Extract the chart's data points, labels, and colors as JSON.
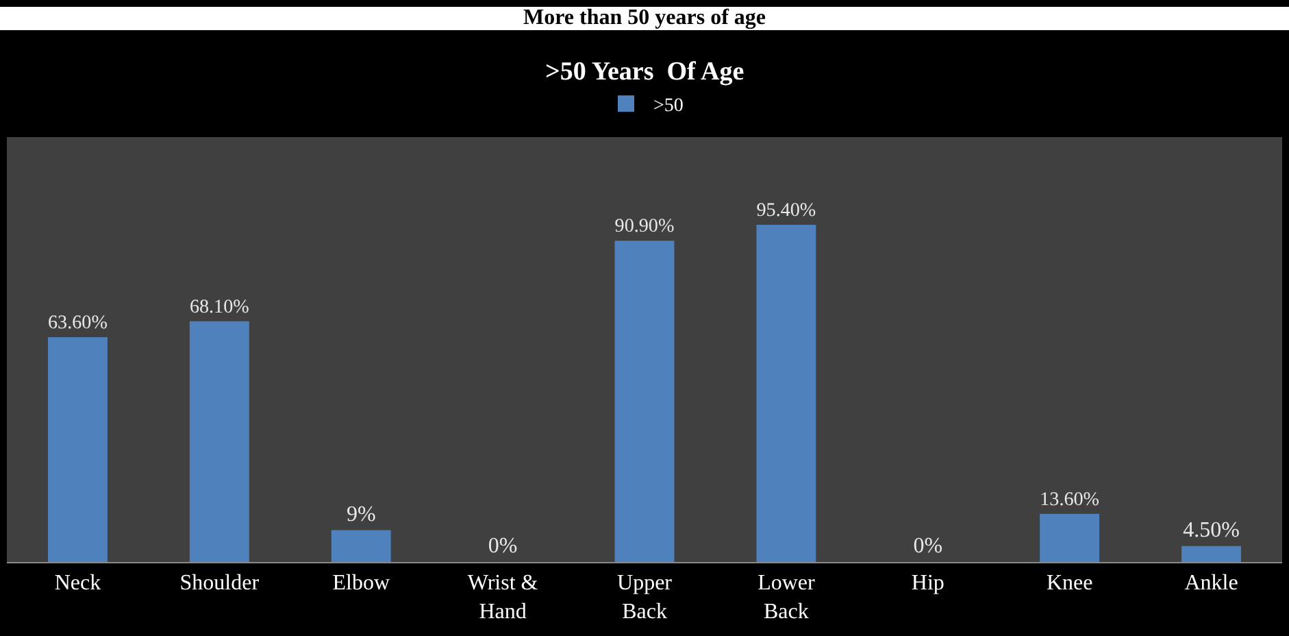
{
  "chart_data": {
    "type": "bar",
    "title": "More than 50 years of age",
    "subtitle": ">50 Years  Of Age",
    "categories": [
      "Neck",
      "Shoulder",
      "Elbow",
      "Wrist & Hand",
      "Upper Back",
      "Lower Back",
      "Hip",
      "Knee",
      "Ankle"
    ],
    "series": [
      {
        "name": ">50",
        "color": "#4f81bd",
        "values": [
          63.6,
          68.1,
          9,
          0,
          90.9,
          95.4,
          0,
          13.6,
          4.5
        ],
        "value_labels": [
          "63.60%",
          "68.10%",
          "9%",
          "0%",
          "90.90%",
          "95.40%",
          "0%",
          "13.60%",
          "4.50%"
        ]
      }
    ],
    "data_labels": true,
    "legend": "top",
    "grid": false
  }
}
